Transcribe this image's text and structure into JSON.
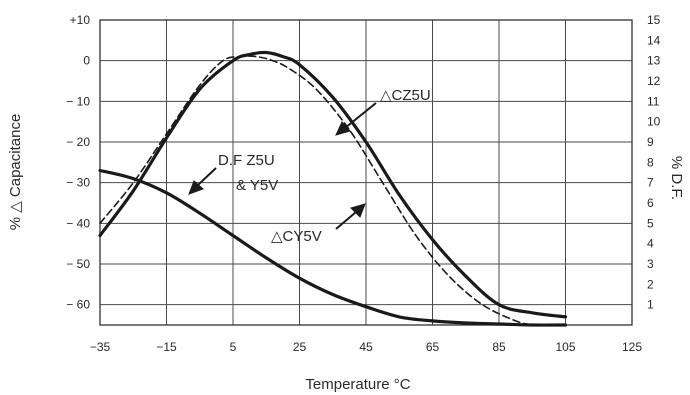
{
  "chart_data": {
    "type": "line",
    "xlabel": "Temperature °C",
    "ylabel_left": "% △ Capacitance",
    "ylabel_right": "% D.F.",
    "xlim": [
      -35,
      125
    ],
    "ylim_left": [
      -65,
      10
    ],
    "ylim_right": [
      0,
      15
    ],
    "x_ticks": [
      "-35",
      "-15",
      "5",
      "25",
      "45",
      "65",
      "85",
      "105",
      "125"
    ],
    "y_ticks_left": [
      "+10",
      "0",
      "-10",
      "-20",
      "-30",
      "-40",
      "-50",
      "-60"
    ],
    "y_ticks_right": [
      "15",
      "14",
      "13",
      "12",
      "11",
      "10",
      "9",
      "8",
      "7",
      "6",
      "5",
      "4",
      "3",
      "2",
      "1"
    ],
    "grid": true,
    "series": [
      {
        "name": "△CZ5U",
        "axis": "left",
        "style": "solid",
        "x": [
          -35,
          -25,
          -15,
          -5,
          5,
          10,
          15,
          20,
          25,
          35,
          45,
          55,
          65,
          75,
          85,
          95,
          105
        ],
        "y": [
          -43,
          -32,
          -19,
          -7,
          0,
          1.5,
          2,
          1,
          -1,
          -9,
          -20,
          -33,
          -44,
          -53,
          -60,
          -62,
          -63
        ]
      },
      {
        "name": "△CY5V",
        "axis": "left",
        "style": "dashed",
        "x": [
          -35,
          -25,
          -15,
          -5,
          2,
          7,
          12,
          17,
          22,
          30,
          40,
          50,
          60,
          70,
          80,
          90,
          95
        ],
        "y": [
          -40,
          -30,
          -18,
          -6,
          0,
          1,
          1,
          0,
          -2,
          -7,
          -17,
          -30,
          -43,
          -53,
          -60,
          -64,
          -65
        ]
      },
      {
        "name": "D.F Z5U & Y5V",
        "axis": "right",
        "style": "solid",
        "x": [
          -35,
          -25,
          -15,
          -5,
          5,
          15,
          25,
          35,
          45,
          55,
          65,
          75,
          85,
          95,
          105
        ],
        "y": [
          7.6,
          7.2,
          6.5,
          5.5,
          4.4,
          3.3,
          2.3,
          1.5,
          0.9,
          0.4,
          0.2,
          0.1,
          0.05,
          0.0,
          0.0
        ]
      }
    ],
    "annotations": [
      "△CZ5U",
      "D.F  Z5U",
      "& Y5V",
      "△CY5V"
    ]
  }
}
